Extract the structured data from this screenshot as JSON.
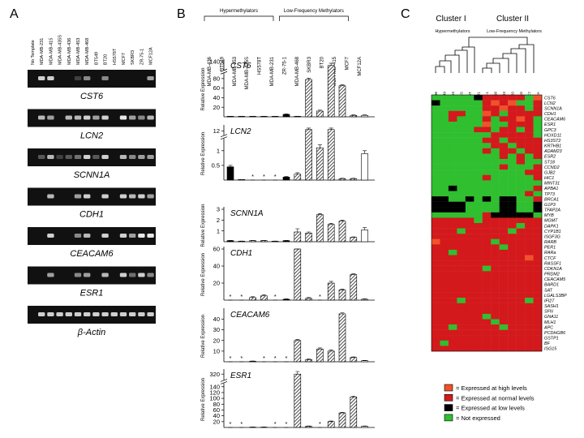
{
  "panel_labels": [
    "A",
    "B",
    "C"
  ],
  "gel_lanes": [
    "No Template",
    "MDA-MB-231",
    "MDA-MB-415",
    "MDA-MB-435S",
    "MDA-MB-436",
    "MDA-MB-453",
    "MDA-MB-468",
    "BT549",
    "BT20",
    "HS578T",
    "MCF7",
    "SKBR3",
    "ZR-75-1",
    "MCF12A"
  ],
  "gels": [
    {
      "name": "CST6",
      "bands": [
        0,
        0.8,
        0.8,
        0,
        0,
        0.2,
        0.5,
        0,
        0.5,
        0,
        0,
        0,
        0,
        0.6
      ]
    },
    {
      "name": "LCN2",
      "bands": [
        0,
        0.7,
        0.6,
        0,
        0.7,
        0.7,
        0.8,
        0.6,
        0.8,
        0,
        0.9,
        0.6,
        0.5,
        0.7
      ]
    },
    {
      "name": "SCNN1A",
      "bands": [
        0,
        0.3,
        0.7,
        0.2,
        0.3,
        0.4,
        0.8,
        0.3,
        0.8,
        0,
        0.7,
        0.5,
        0.6,
        0.6
      ]
    },
    {
      "name": "CDH1",
      "bands": [
        0,
        0,
        0.7,
        0,
        0,
        0.6,
        0.8,
        0,
        0.8,
        0,
        0.8,
        0.7,
        0.8,
        0.6
      ]
    },
    {
      "name": "CEACAM6",
      "bands": [
        0,
        0,
        0.8,
        0,
        0,
        0.5,
        0.7,
        0,
        0.8,
        0,
        0.8,
        0.6,
        0.9,
        0.9
      ]
    },
    {
      "name": "ESR1",
      "bands": [
        0,
        0,
        0.6,
        0,
        0,
        0.5,
        0.6,
        0,
        0.7,
        0,
        0.8,
        0.4,
        0.8,
        0.5
      ]
    },
    {
      "name": "β-Actin",
      "bands": [
        0,
        0.8,
        0.8,
        0.8,
        0.8,
        0.8,
        0.8,
        0.8,
        0.8,
        0.8,
        0.8,
        0.8,
        0.8,
        0.8
      ]
    }
  ],
  "cell_lines": [
    "MDA-MB-436",
    "BT549",
    "MDA-MB-453",
    "MDA-MB-435S",
    "HS578T",
    "MDA-MB-231",
    "ZR-75-1",
    "MDA-MB-468",
    "SKBR3",
    "BT20",
    "MDA-MB-415",
    "MCF7",
    "MCF12A"
  ],
  "bar_styles": [
    "black",
    "hatched",
    "hatched",
    "hatched",
    "hatched",
    "black",
    "hatched",
    "hatched",
    "hatched",
    "hatched",
    "hatched",
    "hatched",
    "white"
  ],
  "groups": [
    {
      "name": "Hypermethylators",
      "size": 6
    },
    {
      "name": "Low-Frequency Methylators",
      "size": 6
    }
  ],
  "not_detected_mark": "*",
  "chart_data": [
    {
      "type": "bar",
      "title": "CST6",
      "ylabel": "Relative Expression",
      "values": [
        1,
        1,
        1,
        1,
        1,
        5,
        1,
        78,
        12,
        135,
        65,
        3,
        3
      ],
      "errors": [
        0,
        0,
        0,
        0,
        0,
        1,
        0,
        3,
        2,
        3,
        2,
        1,
        1
      ],
      "not_detected": [],
      "ylim": [
        0,
        140
      ],
      "yticks": [
        20,
        40,
        60,
        80,
        140
      ],
      "axis_break": [
        90,
        130
      ]
    },
    {
      "type": "bar",
      "title": "LCN2",
      "ylabel": "Relative Expression",
      "values": [
        0.45,
        0.02,
        0,
        0,
        0,
        0.1,
        0.2,
        12.2,
        1.1,
        12.2,
        0.05,
        0.05,
        0.9
      ],
      "errors": [
        0.05,
        0,
        0,
        0,
        0,
        0.02,
        0.05,
        0.2,
        0.1,
        0.2,
        0.01,
        0.01,
        0.1
      ],
      "not_detected": [
        2,
        3,
        4
      ],
      "ylim": [
        0,
        12.5
      ],
      "yticks": [
        0.5,
        1,
        12
      ],
      "axis_break": [
        1.4,
        11.5
      ]
    },
    {
      "type": "bar",
      "title": "SCNN1A",
      "ylabel": "Relative Expression",
      "values": [
        0.1,
        0.05,
        0.1,
        0.1,
        0.05,
        0.1,
        0.9,
        0.8,
        2.5,
        1.6,
        1.9,
        0.4,
        1.1
      ],
      "errors": [
        0.02,
        0.01,
        0.02,
        0.02,
        0.01,
        0.02,
        0.3,
        0.1,
        0.1,
        0.1,
        0.1,
        0.05,
        0.2
      ],
      "not_detected": [],
      "ylim": [
        0,
        3
      ],
      "yticks": [
        1,
        2,
        3
      ]
    },
    {
      "type": "bar",
      "title": "CDH1",
      "ylabel": "Relative Expression",
      "values": [
        0,
        0,
        3,
        5,
        0,
        1,
        60,
        2,
        0,
        20,
        12,
        30,
        1
      ],
      "errors": [
        0,
        0,
        1,
        1,
        0,
        0.5,
        0,
        1,
        0,
        2,
        1,
        1,
        0.5
      ],
      "not_detected": [
        0,
        1,
        4,
        8
      ],
      "ylim": [
        0,
        60
      ],
      "yticks": [
        20,
        40,
        60
      ]
    },
    {
      "type": "bar",
      "title": "CEACAM6",
      "ylabel": "Relative Expression",
      "values": [
        0,
        0,
        0.5,
        0,
        0,
        0,
        20,
        2,
        12,
        10,
        45,
        4,
        1
      ],
      "errors": [
        0,
        0,
        0.2,
        0,
        0,
        0,
        1,
        0.5,
        1,
        1,
        1,
        0.5,
        0.3
      ],
      "not_detected": [
        0,
        1,
        3,
        4,
        5
      ],
      "ylim": [
        0,
        48
      ],
      "yticks": [
        10,
        20,
        30,
        40
      ]
    },
    {
      "type": "bar",
      "title": "ESR1",
      "ylabel": "Relative Expression",
      "values": [
        0,
        0,
        1,
        1,
        0,
        0,
        320,
        4,
        0,
        20,
        50,
        105,
        4
      ],
      "errors": [
        0,
        0,
        0.5,
        0.5,
        0,
        0,
        5,
        1,
        0,
        2,
        2,
        3,
        1
      ],
      "not_detected": [
        0,
        1,
        4,
        5,
        8
      ],
      "ylim": [
        0,
        325
      ],
      "yticks": [
        20,
        40,
        60,
        80,
        100,
        120,
        140,
        320
      ],
      "axis_break": [
        150,
        310
      ]
    }
  ],
  "heatmap": {
    "clusters": [
      "Cluster I",
      "Cluster II"
    ],
    "cluster_groups": [
      "Hypermethylators",
      "Low-Frequency Methylators"
    ],
    "columns": [
      "MDA-MB-436",
      "BT549",
      "MDA-MB-453",
      "MDA-MB-435S",
      "HS578T",
      "MDA-MB-231",
      "ZR-75-1",
      "MDA-MB-468",
      "SKBR3",
      "BT20",
      "MDA-MB-415",
      "MCF7",
      "MCF12A"
    ],
    "genes": [
      "CST6",
      "LCN2",
      "SCNN1A",
      "CDH1",
      "CEACAM6",
      "ESR1",
      "GPC3",
      "HOXD11",
      "HS3ST2",
      "KRTHB1",
      "ADAM23",
      "ESR2",
      "ST18",
      "CCND2",
      "GJB2",
      "HIC1",
      "MINT31",
      "APBA1",
      "TP73",
      "BRCA1",
      "G1P3",
      "TFAP2A",
      "MYB",
      "MGMT",
      "DAPK1",
      "CYP1B1",
      "ISGF3G",
      "RARB",
      "PER1",
      "RARa",
      "CTCF",
      "RASSF1",
      "CDKN1A",
      "PRDM2",
      "CEACAM5",
      "BARD1",
      "SAT",
      "LGALS3BP",
      "IFI27",
      "SASH1",
      "SFN",
      "GNA11",
      "MLH1",
      "APC",
      "PCDHGB6",
      "GSTP1",
      "BF",
      "ISG15"
    ],
    "cells": [
      [
        0,
        0,
        0,
        0,
        0,
        1,
        2,
        2,
        2,
        2,
        2,
        0,
        3
      ],
      [
        1,
        0,
        0,
        0,
        0,
        0,
        2,
        3,
        2,
        3,
        0,
        0,
        2
      ],
      [
        0,
        0,
        0,
        0,
        0,
        0,
        2,
        2,
        3,
        2,
        2,
        0,
        2
      ],
      [
        0,
        0,
        2,
        2,
        0,
        0,
        3,
        2,
        0,
        2,
        2,
        2,
        2
      ],
      [
        0,
        0,
        2,
        0,
        0,
        0,
        2,
        0,
        2,
        2,
        3,
        2,
        0
      ],
      [
        0,
        0,
        0,
        0,
        0,
        0,
        3,
        0,
        0,
        2,
        2,
        2,
        0
      ],
      [
        0,
        0,
        0,
        0,
        0,
        2,
        2,
        0,
        2,
        2,
        0,
        2,
        0
      ],
      [
        0,
        0,
        0,
        0,
        0,
        0,
        0,
        2,
        2,
        2,
        2,
        2,
        0
      ],
      [
        0,
        0,
        0,
        0,
        0,
        0,
        2,
        2,
        0,
        2,
        2,
        2,
        2
      ],
      [
        0,
        0,
        0,
        0,
        0,
        0,
        0,
        2,
        2,
        0,
        2,
        2,
        2
      ],
      [
        0,
        0,
        0,
        0,
        0,
        0,
        2,
        0,
        2,
        2,
        0,
        2,
        2
      ],
      [
        0,
        0,
        0,
        0,
        0,
        0,
        0,
        0,
        2,
        0,
        2,
        0,
        2
      ],
      [
        0,
        0,
        0,
        0,
        0,
        0,
        0,
        0,
        0,
        0,
        2,
        0,
        0
      ],
      [
        0,
        0,
        0,
        0,
        0,
        0,
        0,
        0,
        2,
        0,
        0,
        0,
        2
      ],
      [
        0,
        0,
        0,
        0,
        0,
        0,
        0,
        0,
        0,
        0,
        0,
        2,
        2
      ],
      [
        0,
        0,
        0,
        0,
        0,
        0,
        2,
        0,
        0,
        0,
        0,
        0,
        2
      ],
      [
        0,
        0,
        0,
        0,
        0,
        0,
        0,
        0,
        0,
        0,
        0,
        0,
        0
      ],
      [
        0,
        0,
        1,
        0,
        0,
        0,
        0,
        0,
        0,
        0,
        0,
        0,
        2
      ],
      [
        0,
        0,
        0,
        0,
        0,
        0,
        0,
        0,
        0,
        0,
        0,
        2,
        0
      ],
      [
        1,
        1,
        0,
        0,
        1,
        0,
        1,
        0,
        1,
        1,
        0,
        0,
        2
      ],
      [
        1,
        1,
        1,
        1,
        0,
        0,
        0,
        0,
        1,
        1,
        0,
        0,
        1
      ],
      [
        1,
        1,
        1,
        1,
        0,
        0,
        0,
        0,
        1,
        1,
        0,
        0,
        1
      ],
      [
        0,
        0,
        0,
        0,
        0,
        0,
        2,
        1,
        1,
        1,
        1,
        1,
        0
      ],
      [
        2,
        2,
        2,
        2,
        2,
        0,
        2,
        2,
        2,
        2,
        2,
        2,
        2
      ],
      [
        2,
        2,
        2,
        2,
        2,
        2,
        2,
        2,
        2,
        2,
        0,
        2,
        2
      ],
      [
        2,
        2,
        2,
        0,
        2,
        2,
        2,
        2,
        2,
        0,
        2,
        2,
        2
      ],
      [
        2,
        2,
        2,
        2,
        2,
        2,
        2,
        2,
        2,
        2,
        2,
        2,
        2
      ],
      [
        3,
        2,
        2,
        2,
        2,
        2,
        2,
        0,
        2,
        2,
        2,
        2,
        2
      ],
      [
        2,
        2,
        2,
        2,
        2,
        2,
        2,
        2,
        0,
        2,
        2,
        2,
        2
      ],
      [
        2,
        2,
        0,
        2,
        2,
        2,
        2,
        2,
        2,
        2,
        2,
        2,
        2
      ],
      [
        2,
        2,
        2,
        2,
        2,
        2,
        2,
        2,
        2,
        2,
        2,
        3,
        2
      ],
      [
        2,
        2,
        2,
        2,
        2,
        2,
        2,
        2,
        2,
        2,
        2,
        2,
        2
      ],
      [
        2,
        2,
        2,
        2,
        2,
        2,
        0,
        2,
        2,
        2,
        2,
        2,
        2
      ],
      [
        2,
        2,
        2,
        2,
        2,
        2,
        2,
        2,
        2,
        2,
        2,
        2,
        2
      ],
      [
        2,
        2,
        2,
        2,
        2,
        2,
        2,
        2,
        2,
        2,
        2,
        2,
        2
      ],
      [
        2,
        2,
        2,
        2,
        2,
        2,
        2,
        2,
        2,
        2,
        2,
        2,
        2
      ],
      [
        2,
        2,
        2,
        2,
        2,
        2,
        2,
        2,
        2,
        2,
        2,
        2,
        2
      ],
      [
        2,
        2,
        2,
        2,
        2,
        2,
        2,
        2,
        2,
        2,
        2,
        2,
        2
      ],
      [
        2,
        2,
        2,
        0,
        2,
        2,
        2,
        2,
        2,
        2,
        2,
        0,
        2
      ],
      [
        2,
        2,
        2,
        2,
        2,
        2,
        2,
        2,
        2,
        2,
        2,
        2,
        2
      ],
      [
        2,
        2,
        2,
        2,
        2,
        2,
        2,
        2,
        2,
        2,
        2,
        2,
        2
      ],
      [
        2,
        2,
        2,
        2,
        2,
        2,
        0,
        2,
        2,
        2,
        2,
        2,
        2
      ],
      [
        2,
        2,
        2,
        2,
        2,
        2,
        2,
        0,
        2,
        2,
        2,
        2,
        2
      ],
      [
        2,
        2,
        0,
        2,
        2,
        2,
        2,
        2,
        0,
        2,
        2,
        2,
        2
      ],
      [
        2,
        2,
        2,
        2,
        2,
        2,
        2,
        2,
        2,
        2,
        2,
        2,
        2
      ],
      [
        2,
        2,
        2,
        2,
        2,
        2,
        2,
        2,
        2,
        2,
        2,
        2,
        2
      ],
      [
        2,
        0,
        2,
        2,
        2,
        2,
        2,
        2,
        2,
        2,
        2,
        2,
        2
      ],
      [
        2,
        2,
        2,
        2,
        2,
        2,
        2,
        2,
        2,
        2,
        2,
        2,
        2
      ]
    ],
    "legend": [
      {
        "level": 3,
        "color": "#f0522a",
        "label": "= Expressed at high levels"
      },
      {
        "level": 2,
        "color": "#d3191c",
        "label": "= Expressed at normal levels"
      },
      {
        "level": 1,
        "color": "#000000",
        "label": "= Expressed at low levels"
      },
      {
        "level": 0,
        "color": "#2fbf2f",
        "label": "= Not expressed"
      }
    ]
  }
}
